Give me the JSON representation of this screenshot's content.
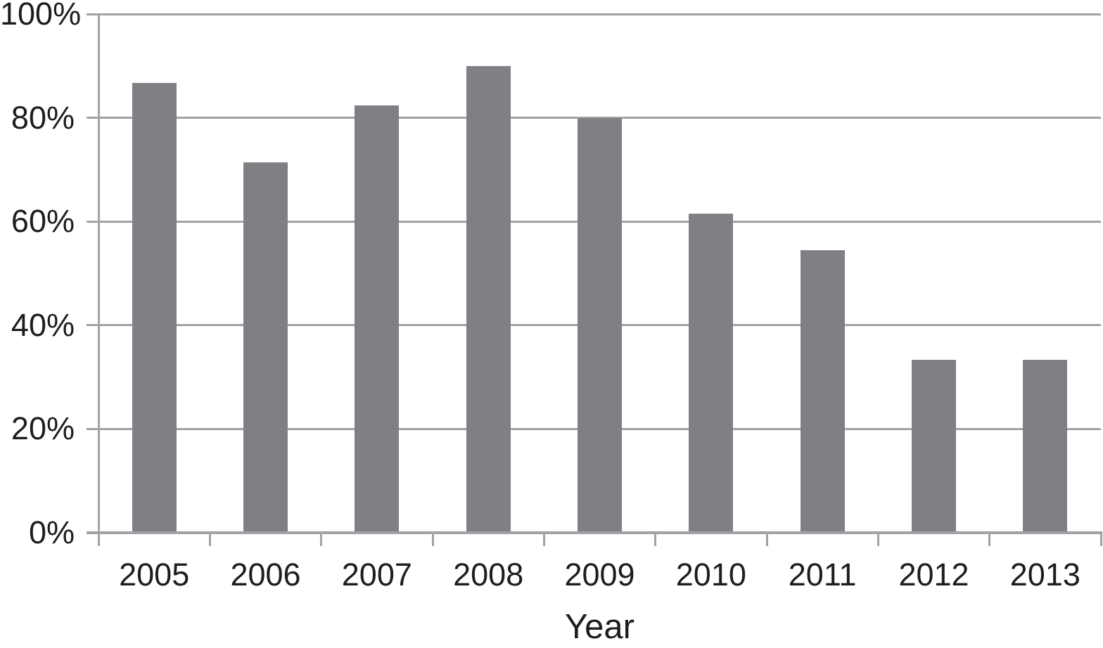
{
  "chart_data": {
    "type": "bar",
    "categories": [
      "2005",
      "2006",
      "2007",
      "2008",
      "2009",
      "2010",
      "2011",
      "2012",
      "2013"
    ],
    "values": [
      86.7,
      71.4,
      82.4,
      90.0,
      80.0,
      61.5,
      54.5,
      33.3,
      33.3
    ],
    "title": "",
    "xlabel": "Year",
    "ylabel": "",
    "ylim": [
      0,
      100
    ],
    "ytick_step": 20,
    "ytick_labels": [
      "0%",
      "20%",
      "40%",
      "60%",
      "80%",
      "100%"
    ],
    "grid": true,
    "legend": false,
    "bar_color": "#7f8083",
    "axis_color": "#a0a3a6",
    "text_color": "#1d1d1b",
    "background_color": "#ffffff"
  }
}
